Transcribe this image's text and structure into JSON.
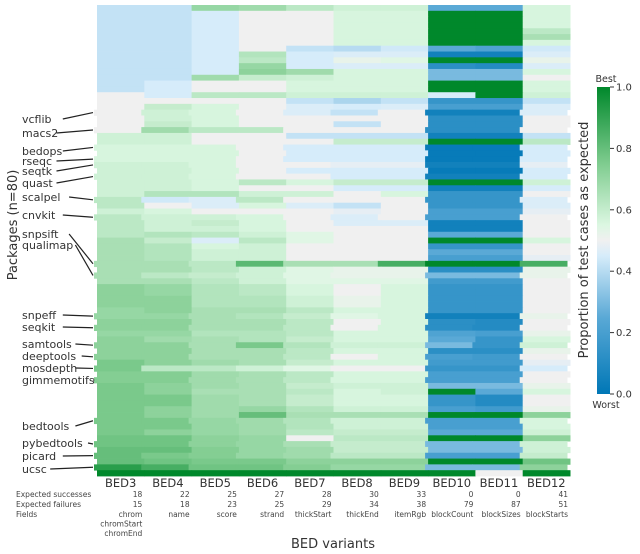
{
  "chart_data": {
    "type": "heatmap",
    "title": "",
    "xlabel": "BED variants",
    "ylabel": "Packages (n=80)",
    "columns": [
      "BED3",
      "BED4",
      "BED5",
      "BED6",
      "BED7",
      "BED8",
      "BED9",
      "BED10",
      "BED11",
      "BED12"
    ],
    "expected_successes": [
      18,
      22,
      25,
      27,
      28,
      30,
      33,
      0,
      0,
      41
    ],
    "expected_failures": [
      15,
      18,
      23,
      25,
      29,
      34,
      38,
      79,
      87,
      51
    ],
    "fields": [
      [
        "chrom",
        "chromStart",
        "chromEnd"
      ],
      [
        "name"
      ],
      [
        "score"
      ],
      [
        "strand"
      ],
      [
        "thickStart"
      ],
      [
        "thickEnd"
      ],
      [
        "itemRgb"
      ],
      [
        "blockCount"
      ],
      [
        "blockSizes"
      ],
      [
        "blockStarts"
      ]
    ],
    "row_header_labels": {
      "successes": "Expected successes",
      "failures": "Expected failures",
      "fields": "Fields"
    },
    "n_packages": 80,
    "labeled_packages": [
      {
        "name": "vcflib",
        "row": 18
      },
      {
        "name": "macs2",
        "row": 21
      },
      {
        "name": "bedops",
        "row": 24
      },
      {
        "name": "rseqc",
        "row": 26
      },
      {
        "name": "seqtk",
        "row": 27
      },
      {
        "name": "quast",
        "row": 29
      },
      {
        "name": "scalpel",
        "row": 33
      },
      {
        "name": "cnvkit",
        "row": 36
      },
      {
        "name": "snpsift",
        "row": 44
      },
      {
        "name": "qualimap",
        "row": 46
      },
      {
        "name": "snpeff",
        "row": 53
      },
      {
        "name": "seqkit",
        "row": 55
      },
      {
        "name": "samtools",
        "row": 58
      },
      {
        "name": "deeptools",
        "row": 60
      },
      {
        "name": "mosdepth",
        "row": 62
      },
      {
        "name": "gimmemotifs",
        "row": 64
      },
      {
        "name": "bedtools",
        "row": 71
      },
      {
        "name": "pybedtools",
        "row": 75
      },
      {
        "name": "picard",
        "row": 77
      },
      {
        "name": "ucsc",
        "row": 79
      }
    ],
    "colorbar": {
      "label": "Proportion of test cases as expected",
      "min": 0.0,
      "max": 1.0,
      "ticks": [
        0.0,
        0.2,
        0.4,
        0.6,
        0.8,
        1.0
      ],
      "tick_labels": [
        "0.0",
        "0.2",
        "0.4",
        "0.6",
        "0.8",
        "1.0"
      ],
      "top_label": "Best",
      "bottom_label": "Worst",
      "colors": [
        "#0077b6",
        "#f0f0f0",
        "#00882b"
      ]
    },
    "values": [
      [
        0.42,
        0.42,
        0.7,
        0.68,
        0.62,
        0.58,
        0.58,
        0.25,
        0.25,
        0.56
      ],
      [
        0.42,
        0.42,
        0.45,
        0.5,
        0.5,
        0.56,
        0.56,
        1.0,
        1.0,
        0.56
      ],
      [
        0.42,
        0.42,
        0.45,
        0.5,
        0.5,
        0.56,
        0.56,
        1.0,
        1.0,
        0.56
      ],
      [
        0.42,
        0.42,
        0.45,
        0.5,
        0.5,
        0.56,
        0.56,
        1.0,
        1.0,
        0.56
      ],
      [
        0.42,
        0.42,
        0.45,
        0.5,
        0.5,
        0.56,
        0.56,
        1.0,
        1.0,
        0.62
      ],
      [
        0.42,
        0.42,
        0.45,
        0.5,
        0.5,
        0.56,
        0.56,
        1.0,
        1.0,
        0.66
      ],
      [
        0.42,
        0.42,
        0.45,
        0.5,
        0.5,
        0.56,
        0.56,
        1.0,
        1.0,
        0.56
      ],
      [
        0.42,
        0.42,
        0.45,
        0.5,
        0.42,
        0.4,
        0.44,
        0.25,
        0.22,
        0.44
      ],
      [
        0.42,
        0.42,
        0.45,
        0.64,
        0.45,
        0.46,
        0.46,
        0.05,
        0.05,
        0.46
      ],
      [
        0.42,
        0.42,
        0.45,
        0.62,
        0.45,
        0.52,
        0.54,
        1.0,
        1.0,
        0.52
      ],
      [
        0.42,
        0.42,
        0.45,
        0.7,
        0.45,
        0.46,
        0.46,
        0.12,
        0.1,
        0.46
      ],
      [
        0.42,
        0.42,
        0.45,
        0.72,
        0.68,
        0.56,
        0.56,
        0.3,
        0.3,
        0.56
      ],
      [
        0.42,
        0.42,
        0.68,
        0.6,
        0.58,
        0.56,
        0.56,
        0.3,
        0.3,
        0.5
      ],
      [
        0.42,
        0.45,
        0.5,
        0.5,
        0.56,
        0.56,
        0.56,
        1.0,
        1.0,
        0.56
      ],
      [
        0.42,
        0.45,
        0.5,
        0.5,
        0.56,
        0.56,
        0.56,
        1.0,
        1.0,
        0.56
      ],
      [
        0.5,
        0.45,
        0.62,
        0.62,
        0.58,
        0.58,
        0.58,
        0.45,
        1.0,
        0.58
      ],
      [
        0.5,
        0.5,
        0.5,
        0.5,
        0.42,
        0.38,
        0.42,
        0.15,
        0.15,
        0.42
      ],
      [
        0.5,
        0.6,
        0.56,
        0.5,
        0.46,
        0.45,
        0.46,
        0.2,
        0.2,
        0.46
      ],
      [
        0.5,
        0.58,
        0.56,
        0.5,
        0.46,
        0.42,
        0.5,
        0.05,
        0.05,
        0.46
      ],
      [
        0.5,
        0.58,
        0.56,
        0.5,
        0.5,
        0.5,
        0.5,
        0.12,
        0.12,
        0.5
      ],
      [
        0.5,
        0.6,
        0.56,
        0.5,
        0.5,
        0.42,
        0.5,
        0.12,
        0.12,
        0.5
      ],
      [
        0.5,
        0.68,
        0.62,
        0.62,
        0.5,
        0.5,
        0.5,
        0.12,
        0.12,
        0.5
      ],
      [
        0.58,
        0.58,
        0.5,
        0.5,
        0.42,
        0.42,
        0.42,
        0.05,
        0.05,
        0.42
      ],
      [
        0.58,
        0.58,
        0.5,
        0.5,
        0.5,
        0.6,
        0.6,
        1.0,
        1.0,
        0.62
      ],
      [
        0.56,
        0.56,
        0.56,
        0.5,
        0.45,
        0.45,
        0.45,
        0.02,
        0.02,
        0.45
      ],
      [
        0.56,
        0.56,
        0.56,
        0.5,
        0.45,
        0.45,
        0.45,
        0.02,
        0.02,
        0.45
      ],
      [
        0.56,
        0.56,
        0.56,
        0.5,
        0.45,
        0.45,
        0.45,
        0.02,
        0.02,
        0.45
      ],
      [
        0.58,
        0.58,
        0.56,
        0.5,
        0.5,
        0.48,
        0.48,
        0.05,
        0.05,
        0.48
      ],
      [
        0.58,
        0.58,
        0.56,
        0.5,
        0.45,
        0.45,
        0.45,
        0.02,
        0.02,
        0.45
      ],
      [
        0.58,
        0.58,
        0.56,
        0.5,
        0.5,
        0.45,
        0.45,
        0.05,
        0.05,
        0.45
      ],
      [
        0.58,
        0.58,
        0.56,
        0.62,
        0.56,
        0.6,
        0.6,
        1.0,
        1.0,
        0.58
      ],
      [
        0.58,
        0.58,
        0.56,
        0.5,
        0.5,
        0.45,
        0.45,
        0.05,
        0.05,
        0.45
      ],
      [
        0.58,
        0.64,
        0.64,
        0.58,
        0.58,
        0.5,
        0.56,
        0.15,
        0.15,
        0.5
      ],
      [
        0.62,
        0.44,
        0.46,
        0.62,
        0.5,
        0.5,
        0.5,
        0.15,
        0.15,
        0.46
      ],
      [
        0.62,
        0.5,
        0.46,
        0.56,
        0.46,
        0.42,
        0.5,
        0.15,
        0.15,
        0.46
      ],
      [
        0.58,
        0.56,
        0.5,
        0.5,
        0.5,
        0.48,
        0.5,
        0.2,
        0.2,
        0.48
      ],
      [
        0.62,
        0.58,
        0.58,
        0.56,
        0.5,
        0.46,
        0.5,
        0.2,
        0.2,
        0.5
      ],
      [
        0.62,
        0.58,
        0.6,
        0.56,
        0.5,
        0.46,
        0.46,
        0.05,
        0.05,
        0.5
      ],
      [
        0.62,
        0.58,
        0.58,
        0.56,
        0.5,
        0.5,
        0.5,
        0.05,
        0.05,
        0.5
      ],
      [
        0.62,
        0.64,
        0.62,
        0.58,
        0.54,
        0.5,
        0.5,
        0.25,
        0.25,
        0.5
      ],
      [
        0.66,
        0.6,
        0.46,
        0.62,
        0.54,
        0.5,
        0.5,
        1.0,
        1.0,
        0.56
      ],
      [
        0.66,
        0.64,
        0.56,
        0.58,
        0.5,
        0.5,
        0.5,
        0.15,
        0.15,
        0.5
      ],
      [
        0.66,
        0.64,
        0.58,
        0.58,
        0.5,
        0.5,
        0.5,
        0.25,
        0.25,
        0.5
      ],
      [
        0.66,
        0.64,
        0.58,
        0.58,
        0.5,
        0.5,
        0.5,
        0.2,
        0.2,
        0.48
      ],
      [
        0.66,
        0.66,
        0.62,
        0.82,
        0.66,
        0.66,
        0.86,
        1.0,
        1.0,
        0.86
      ],
      [
        0.66,
        0.66,
        0.62,
        0.58,
        0.54,
        0.52,
        0.52,
        0.12,
        0.12,
        0.52
      ],
      [
        0.66,
        0.62,
        0.6,
        0.58,
        0.54,
        0.52,
        0.52,
        0.3,
        0.3,
        0.52
      ],
      [
        0.66,
        0.66,
        0.62,
        0.58,
        0.54,
        0.54,
        0.54,
        0.18,
        0.18,
        0.5
      ],
      [
        0.72,
        0.7,
        0.64,
        0.62,
        0.56,
        0.5,
        0.56,
        0.15,
        0.15,
        0.5
      ],
      [
        0.72,
        0.7,
        0.64,
        0.62,
        0.56,
        0.5,
        0.56,
        0.15,
        0.15,
        0.5
      ],
      [
        0.72,
        0.72,
        0.64,
        0.64,
        0.58,
        0.52,
        0.56,
        0.15,
        0.15,
        0.5
      ],
      [
        0.72,
        0.72,
        0.64,
        0.64,
        0.58,
        0.52,
        0.56,
        0.15,
        0.15,
        0.5
      ],
      [
        0.7,
        0.72,
        0.66,
        0.66,
        0.62,
        0.56,
        0.56,
        0.15,
        0.15,
        0.5
      ],
      [
        0.7,
        0.7,
        0.66,
        0.64,
        0.6,
        0.54,
        0.56,
        0.05,
        0.05,
        0.52
      ],
      [
        0.72,
        0.72,
        0.66,
        0.66,
        0.62,
        0.5,
        0.56,
        0.12,
        0.1,
        0.5
      ],
      [
        0.72,
        0.72,
        0.66,
        0.66,
        0.62,
        0.5,
        0.56,
        0.12,
        0.1,
        0.5
      ],
      [
        0.7,
        0.7,
        0.64,
        0.64,
        0.62,
        0.56,
        0.56,
        0.22,
        0.2,
        0.52
      ],
      [
        0.72,
        0.68,
        0.66,
        0.64,
        0.6,
        0.56,
        0.56,
        0.25,
        0.15,
        0.56
      ],
      [
        0.72,
        0.72,
        0.66,
        0.76,
        0.64,
        0.58,
        0.58,
        0.3,
        0.15,
        0.58
      ],
      [
        0.72,
        0.72,
        0.66,
        0.66,
        0.62,
        0.56,
        0.56,
        0.12,
        0.12,
        0.52
      ],
      [
        0.72,
        0.72,
        0.66,
        0.66,
        0.62,
        0.5,
        0.56,
        0.2,
        0.18,
        0.5
      ],
      [
        0.76,
        0.72,
        0.68,
        0.66,
        0.6,
        0.56,
        0.56,
        0.18,
        0.18,
        0.48
      ],
      [
        0.76,
        0.62,
        0.62,
        0.58,
        0.54,
        0.5,
        0.5,
        0.15,
        0.15,
        0.45
      ],
      [
        0.74,
        0.74,
        0.68,
        0.66,
        0.62,
        0.56,
        0.56,
        0.2,
        0.2,
        0.5
      ],
      [
        0.74,
        0.74,
        0.68,
        0.66,
        0.62,
        0.56,
        0.56,
        0.2,
        0.2,
        0.5
      ],
      [
        0.76,
        0.72,
        0.68,
        0.66,
        0.6,
        0.58,
        0.58,
        0.3,
        0.3,
        0.52
      ],
      [
        0.76,
        0.72,
        0.66,
        0.66,
        0.62,
        0.56,
        0.58,
        1.0,
        0.25,
        0.56
      ],
      [
        0.76,
        0.76,
        0.68,
        0.66,
        0.6,
        0.56,
        0.56,
        0.15,
        0.1,
        0.5
      ],
      [
        0.76,
        0.76,
        0.68,
        0.66,
        0.6,
        0.56,
        0.56,
        0.15,
        0.1,
        0.5
      ],
      [
        0.76,
        0.72,
        0.68,
        0.7,
        0.64,
        0.58,
        0.58,
        0.2,
        0.18,
        0.52
      ],
      [
        0.76,
        0.72,
        0.68,
        0.8,
        0.66,
        0.66,
        0.66,
        1.0,
        1.0,
        0.72
      ],
      [
        0.76,
        0.76,
        0.7,
        0.68,
        0.64,
        0.58,
        0.58,
        0.2,
        0.2,
        0.56
      ],
      [
        0.76,
        0.76,
        0.7,
        0.68,
        0.64,
        0.58,
        0.58,
        0.2,
        0.2,
        0.56
      ],
      [
        0.76,
        0.72,
        0.7,
        0.68,
        0.62,
        0.6,
        0.6,
        0.25,
        0.25,
        0.58
      ],
      [
        0.78,
        0.78,
        0.72,
        0.7,
        0.5,
        0.62,
        0.62,
        1.0,
        1.0,
        0.72
      ],
      [
        0.78,
        0.78,
        0.72,
        0.7,
        0.66,
        0.6,
        0.6,
        0.3,
        0.3,
        0.58
      ],
      [
        0.8,
        0.8,
        0.74,
        0.7,
        0.68,
        0.6,
        0.6,
        0.3,
        0.3,
        0.58
      ],
      [
        0.8,
        0.76,
        0.74,
        0.7,
        0.68,
        0.62,
        0.62,
        0.2,
        0.2,
        0.6
      ],
      [
        0.8,
        0.78,
        0.76,
        0.76,
        0.72,
        0.72,
        0.72,
        1.0,
        1.0,
        0.78
      ],
      [
        0.92,
        0.86,
        0.78,
        0.78,
        0.74,
        0.7,
        0.7,
        0.3,
        0.3,
        0.72
      ],
      [
        1.0,
        1.0,
        1.0,
        1.0,
        1.0,
        1.0,
        1.0,
        1.0,
        0.5,
        1.0
      ]
    ]
  }
}
